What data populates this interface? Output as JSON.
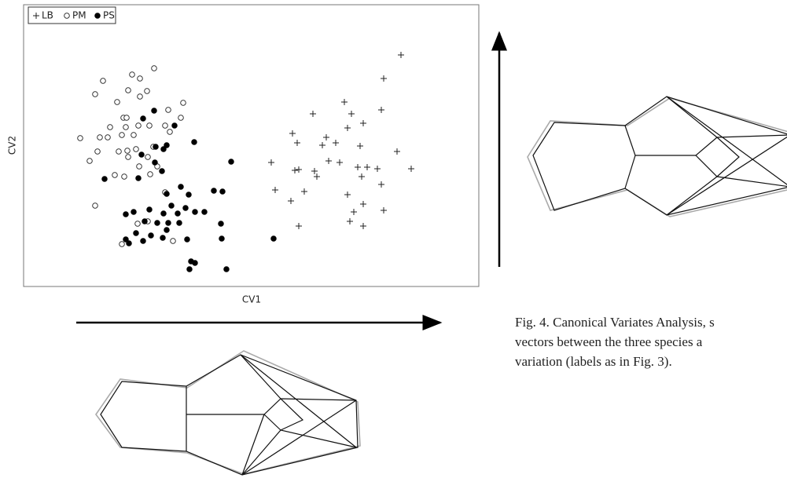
{
  "chart_data": {
    "type": "scatter",
    "x_label": "CV1",
    "y_label": "CV2",
    "xlim": [
      0,
      579
    ],
    "ylim": [
      0,
      359
    ],
    "legend": "upper left",
    "series": [
      {
        "name": "LB",
        "marker": "plus",
        "color": "#222222",
        "x": [
          480,
          458,
          408,
          455,
          368,
          417,
          342,
          432,
          412,
          385,
          348,
          380,
          397,
          428,
          475,
          315,
          388,
          402,
          425,
          437,
          450,
          493,
          345,
          350,
          370,
          373,
          430,
          455,
          320,
          357,
          412,
          340,
          432,
          420,
          458,
          415,
          432,
          350
        ],
        "values": [
          295,
          265,
          235,
          225,
          220,
          220,
          195,
          208,
          202,
          190,
          183,
          180,
          183,
          179,
          172,
          158,
          160,
          158,
          152,
          152,
          150,
          150,
          148,
          149,
          147,
          140,
          140,
          130,
          123,
          121,
          117,
          109,
          105,
          95,
          97,
          83,
          77,
          77
        ]
      },
      {
        "name": "PM",
        "marker": "open-circle",
        "color": "#222222",
        "x": [
          138,
          148,
          166,
          101,
          133,
          157,
          91,
          148,
          119,
          203,
          184,
          127,
          131,
          200,
          110,
          130,
          146,
          160,
          180,
          72,
          97,
          107,
          125,
          140,
          186,
          165,
          94,
          121,
          132,
          143,
          84,
          133,
          158,
          116,
          128,
          147,
          170,
          161,
          91,
          180,
          145,
          158,
          125,
          190
        ],
        "values": [
          270,
          265,
          278,
          262,
          250,
          249,
          245,
          242,
          235,
          234,
          225,
          215,
          215,
          215,
          203,
          203,
          205,
          205,
          205,
          189,
          190,
          190,
          193,
          193,
          197,
          178,
          172,
          172,
          173,
          175,
          160,
          165,
          165,
          142,
          140,
          153,
          153,
          143,
          103,
          120,
          80,
          83,
          54,
          58
        ]
      },
      {
        "name": "PS",
        "marker": "filled-circle",
        "color": "#000000",
        "x": [
          166,
          152,
          192,
          168,
          182,
          178,
          217,
          264,
          150,
          167,
          176,
          103,
          146,
          200,
          182,
          242,
          253,
          210,
          160,
          188,
          206,
          130,
          140,
          178,
          196,
          218,
          230,
          154,
          170,
          184,
          198,
          182,
          251,
          143,
          162,
          130,
          134,
          152,
          177,
          208,
          252,
          318,
          213,
          218,
          211,
          258
        ],
        "values": [
          224,
          214,
          205,
          178,
          180,
          175,
          184,
          159,
          168,
          158,
          147,
          137,
          138,
          127,
          118,
          122,
          121,
          117,
          98,
          103,
          100,
          92,
          95,
          93,
          93,
          95,
          95,
          83,
          81,
          81,
          81,
          72,
          80,
          68,
          65,
          60,
          55,
          58,
          62,
          60,
          61,
          61,
          32,
          30,
          22,
          22
        ]
      }
    ]
  },
  "caption": {
    "lines": [
      "Fig. 4. Canonical Variates Analysis, s",
      "vectors between the three species a",
      "variation (labels as in Fig. 3)."
    ]
  }
}
